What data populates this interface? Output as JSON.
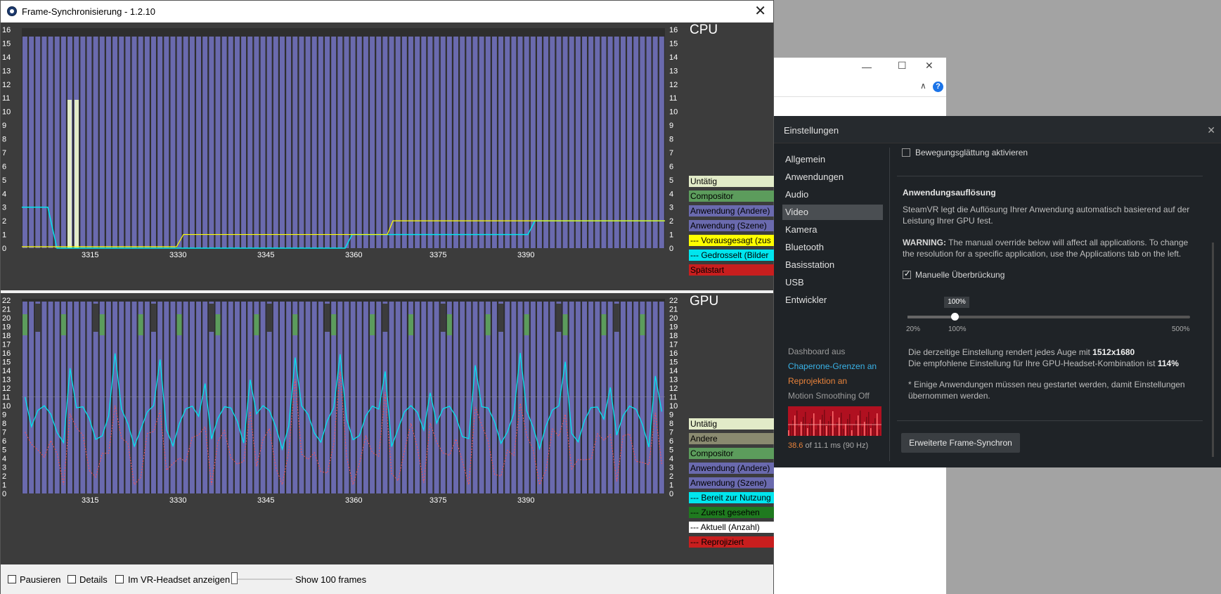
{
  "main_window": {
    "title": "Frame-Synchronisierung - 1.2.10",
    "close_glyph": "✕"
  },
  "cpu_graph": {
    "title": "CPU",
    "y_ticks": [
      "16",
      "15",
      "14",
      "13",
      "12",
      "11",
      "10",
      "9",
      "8",
      "7",
      "6",
      "5",
      "4",
      "3",
      "2",
      "1",
      "0"
    ],
    "x_ticks": [
      "3315",
      "3330",
      "3345",
      "3360",
      "3375",
      "3390"
    ],
    "legend": [
      {
        "label": "Untätig",
        "color": "#e2ebc8",
        "text_color": "#000"
      },
      {
        "label": "Compositor",
        "color": "#5c9c5c",
        "text_color": "#000"
      },
      {
        "label": "Anwendung (Andere)",
        "color": "#6a6aae",
        "text_color": "#000"
      },
      {
        "label": "Anwendung (Szene)",
        "color": "#6a6aae",
        "text_color": "#000"
      },
      {
        "label": "--- Vorausgesagt (zus",
        "color": "#ffff00",
        "text_color": "#000"
      },
      {
        "label": "--- Gedrosselt (Bilder",
        "color": "#00e5ee",
        "text_color": "#000"
      },
      {
        "label": "Spätstart",
        "color": "#c81e1e",
        "text_color": "#000"
      }
    ]
  },
  "gpu_graph": {
    "title": "GPU",
    "y_ticks": [
      "22",
      "21",
      "20",
      "19",
      "18",
      "17",
      "16",
      "15",
      "14",
      "13",
      "12",
      "11",
      "10",
      "9",
      "8",
      "7",
      "6",
      "5",
      "4",
      "3",
      "2",
      "1",
      "0"
    ],
    "x_ticks": [
      "3315",
      "3330",
      "3345",
      "3360",
      "3375",
      "3390"
    ],
    "legend": [
      {
        "label": "Untätig",
        "color": "#e2ebc8",
        "text_color": "#000"
      },
      {
        "label": "Andere",
        "color": "#8a8a70",
        "text_color": "#000"
      },
      {
        "label": "Compositor",
        "color": "#5c9c5c",
        "text_color": "#000"
      },
      {
        "label": "Anwendung (Andere)",
        "color": "#6a6aae",
        "text_color": "#000"
      },
      {
        "label": "Anwendung (Szene)",
        "color": "#6a6aae",
        "text_color": "#000"
      },
      {
        "label": "--- Bereit zur Nutzung",
        "color": "#00e5ee",
        "text_color": "#000"
      },
      {
        "label": "--- Zuerst gesehen",
        "color": "#1f7a1f",
        "text_color": "#000"
      },
      {
        "label": "--- Aktuell (Anzahl)",
        "color": "#ffffff",
        "text_color": "#000"
      },
      {
        "label": "--- Reprojiziert",
        "color": "#c81e1e",
        "text_color": "#000"
      }
    ]
  },
  "bottom_bar": {
    "pause_label": "Pausieren",
    "details_label": "Details",
    "vr_label": "Im VR-Headset anzeigen",
    "frames_label": "Show 100 frames"
  },
  "back_window": {
    "minimize_glyph": "—",
    "maximize_glyph": "☐",
    "close_glyph": "✕",
    "collapse_glyph": "∧",
    "help_glyph": "?"
  },
  "settings": {
    "title": "Einstellungen",
    "close_glyph": "✕",
    "nav": [
      "Allgemein",
      "Anwendungen",
      "Audio",
      "Video",
      "Kamera",
      "Bluetooth",
      "Basisstation",
      "USB",
      "Entwickler"
    ],
    "active_nav": "Video",
    "status": {
      "dashboard": "Dashboard aus",
      "chaperone": "Chaperone-Grenzen an",
      "reprojection": "Reprojektion an",
      "motion": "Motion Smoothing Off",
      "perf_value": "38.6",
      "perf_rest": " of 11.1 ms (90 Hz)",
      "dashboard_color": "#9a9a9a",
      "chaperone_color": "#39b3e8",
      "reprojection_color": "#e8823a",
      "motion_color": "#9a9a9a"
    },
    "motion_smoothing_label": "Bewegungsglättung aktivieren",
    "resolution_heading": "Anwendungsauflösung",
    "resolution_desc": "SteamVR legt die Auflösung Ihrer Anwendung automatisch basierend auf der Leistung Ihrer GPU fest.",
    "warning_bold": "WARNING:",
    "warning_text": " The manual override below will affect all applications. To change the resolution for a specific application, use the Applications tab on the left.",
    "override_label": "Manuelle Überbrückung",
    "slider_value": "100%",
    "slider_level_percent": 100,
    "slider_labels": [
      "20%",
      "100%",
      "500%"
    ],
    "current_setting_prefix": "Die derzeitige Einstellung rendert jedes Auge mit ",
    "current_setting_value": "1512x1680",
    "recommended_prefix": "Die empfohlene Einstellung für Ihre GPU-Headset-Kombination ist ",
    "recommended_value": "114%",
    "restart_note": "* Einige Anwendungen müssen neu gestartet werden, damit Einstellungen übernommen werden.",
    "advanced_button": "Erweiterte Frame-Synchron"
  }
}
